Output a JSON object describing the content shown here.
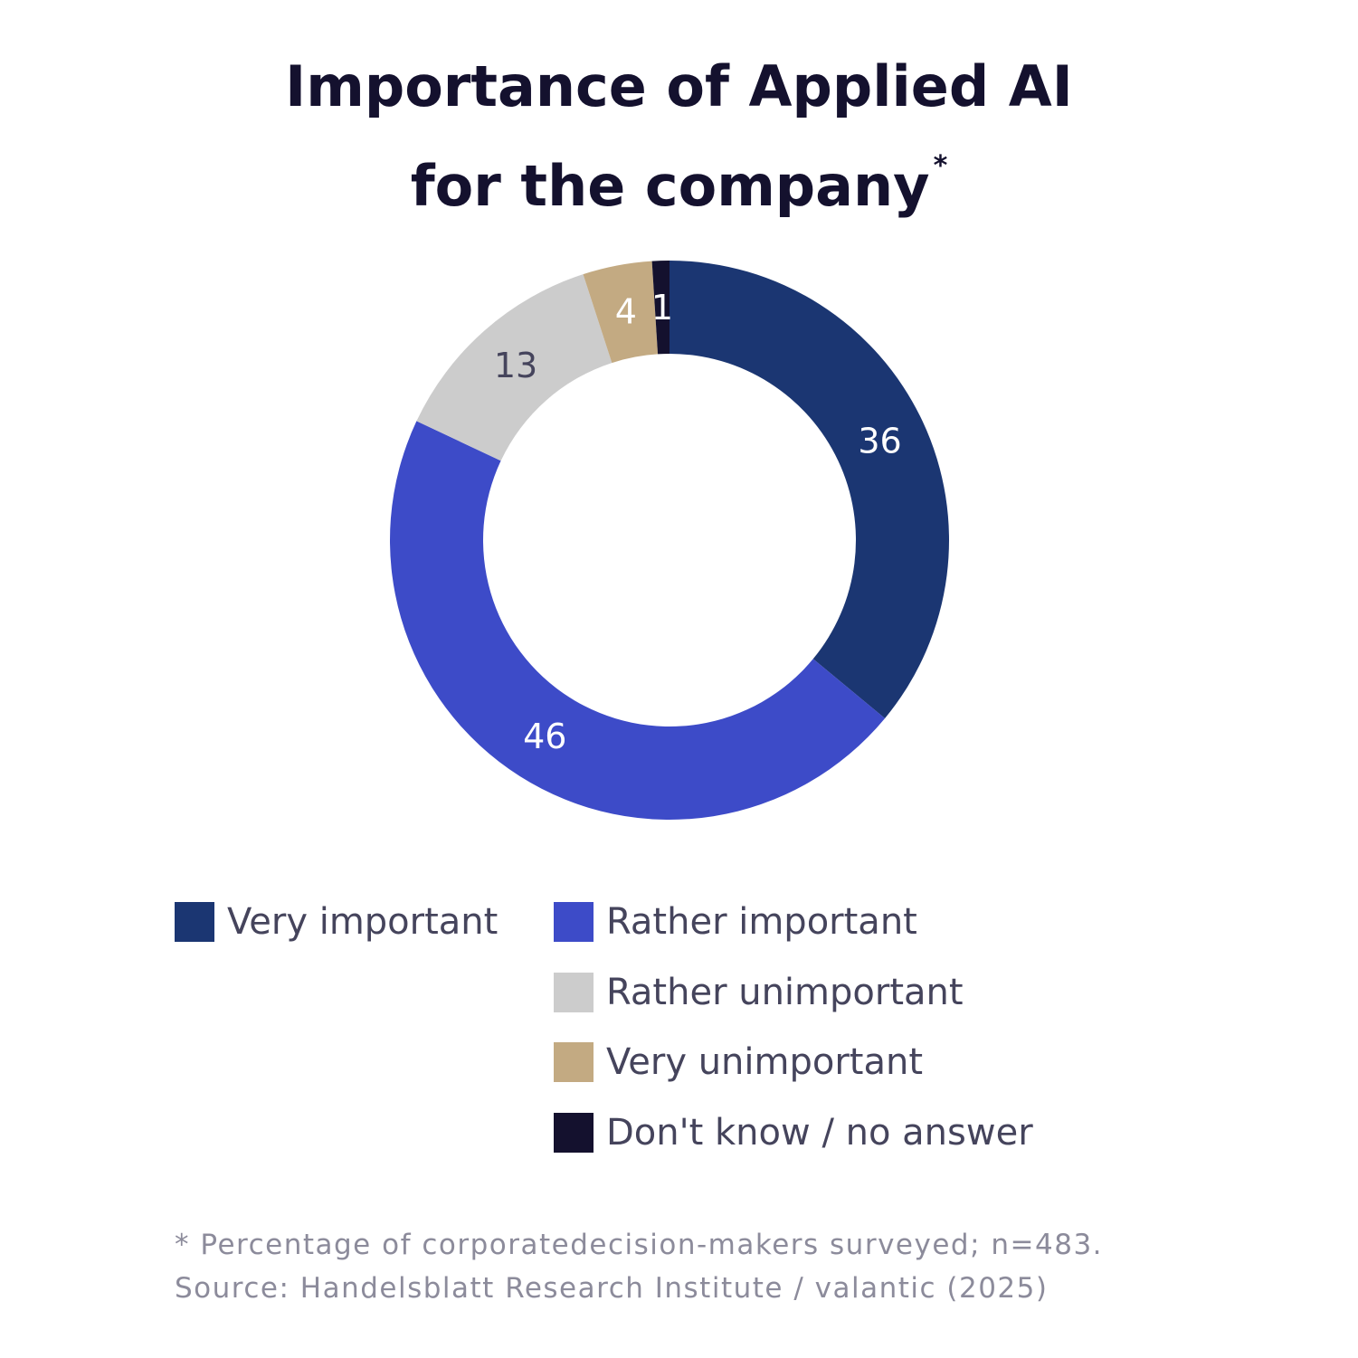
{
  "title": {
    "line1": "Importance of Applied AI",
    "line2": "for the company",
    "marker": "*"
  },
  "chart_data": {
    "type": "pie",
    "variant": "donut",
    "categories": [
      "Very important",
      "Rather important",
      "Rather unimportant",
      "Very unimportant",
      "Don't know / no answer"
    ],
    "values": [
      36,
      46,
      13,
      4,
      1
    ],
    "data_labels": [
      "36",
      "46",
      "13",
      "4",
      "1"
    ],
    "colors": [
      "#1b3672",
      "#3d4bc8",
      "#cccccc",
      "#c3aa82",
      "#14112e"
    ],
    "label_colors": [
      "#ffffff",
      "#ffffff",
      "#45445c",
      "#ffffff",
      "#ffffff"
    ],
    "start_angle_deg": 0,
    "direction": "clockwise",
    "legend_position": "bottom"
  },
  "legend": {
    "items": [
      {
        "label": "Very important",
        "color": "#1b3672"
      },
      {
        "label": "Rather important",
        "color": "#3d4bc8"
      },
      {
        "label": "Rather unimportant",
        "color": "#cccccc"
      },
      {
        "label": "Very unimportant",
        "color": "#c3aa82"
      },
      {
        "label": "Don't know / no answer",
        "color": "#14112e"
      }
    ]
  },
  "footnote": {
    "line1": "* Percentage of corporatedecision-makers surveyed; n=483.",
    "line2": "Source: Handelsblatt Research Institute / valantic (2025)"
  }
}
